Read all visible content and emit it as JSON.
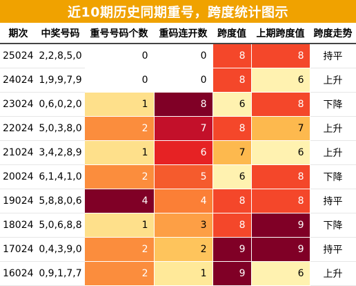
{
  "title": "近10期历史同期重号，跨度统计图示",
  "headers": [
    "期次",
    "中奖号码",
    "重号号码个数",
    "重码连开数",
    "跨度值",
    "上期跨度值",
    "跨度走势"
  ],
  "colors": {
    "title_bg": "#f0a200",
    "scale_0": "#ffffff",
    "scale_1": "#fee391",
    "scale_2": "#fd9b3f",
    "scale_4": "#fa7a30",
    "scale_6": "#e92025",
    "scale_7": "#c20e24",
    "scale_8": "#800026"
  },
  "rows": [
    {
      "period": "25024",
      "numbers": "2,2,8,5,0",
      "repeat_count": "0",
      "repeat_streak": "0",
      "span": "8",
      "prev_span": "8",
      "trend": "持平"
    },
    {
      "period": "24024",
      "numbers": "1,9,9,7,9",
      "repeat_count": "0",
      "repeat_streak": "0",
      "span": "8",
      "prev_span": "6",
      "trend": "上升"
    },
    {
      "period": "23024",
      "numbers": "0,6,0,2,0",
      "repeat_count": "1",
      "repeat_streak": "8",
      "span": "6",
      "prev_span": "8",
      "trend": "下降"
    },
    {
      "period": "22024",
      "numbers": "5,0,3,8,0",
      "repeat_count": "2",
      "repeat_streak": "7",
      "span": "8",
      "prev_span": "7",
      "trend": "上升"
    },
    {
      "period": "21024",
      "numbers": "3,4,2,8,9",
      "repeat_count": "1",
      "repeat_streak": "6",
      "span": "7",
      "prev_span": "6",
      "trend": "上升"
    },
    {
      "period": "20024",
      "numbers": "6,1,4,1,0",
      "repeat_count": "2",
      "repeat_streak": "5",
      "span": "6",
      "prev_span": "8",
      "trend": "下降"
    },
    {
      "period": "19024",
      "numbers": "5,8,8,0,6",
      "repeat_count": "4",
      "repeat_streak": "4",
      "span": "8",
      "prev_span": "8",
      "trend": "持平"
    },
    {
      "period": "18024",
      "numbers": "5,0,6,8,8",
      "repeat_count": "1",
      "repeat_streak": "3",
      "span": "8",
      "prev_span": "9",
      "trend": "下降"
    },
    {
      "period": "17024",
      "numbers": "0,4,3,9,0",
      "repeat_count": "2",
      "repeat_streak": "2",
      "span": "9",
      "prev_span": "9",
      "trend": "持平"
    },
    {
      "period": "16024",
      "numbers": "0,9,1,7,7",
      "repeat_count": "2",
      "repeat_streak": "1",
      "span": "9",
      "prev_span": "6",
      "trend": "上升"
    }
  ]
}
